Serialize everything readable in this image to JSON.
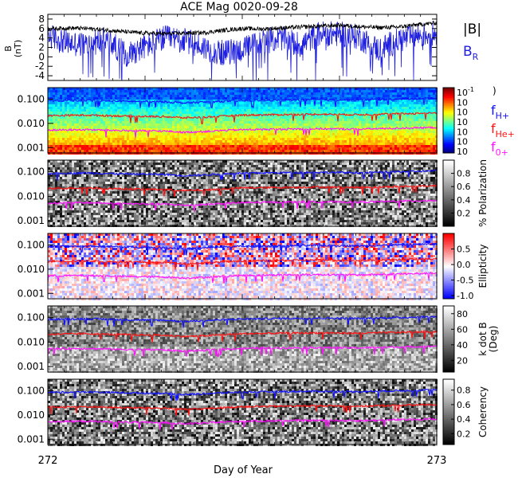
{
  "title": "ACE Mag 0020-09-28",
  "xlabel": "Day of Year",
  "x_ticks": [
    "272",
    "273"
  ],
  "colors": {
    "bmag": "#000000",
    "br": "#1f1fe0",
    "fh": "#1010ff",
    "fhe": "#ff1010",
    "fo": "#ff10ff"
  },
  "chart_data": [
    {
      "type": "line",
      "panel": "B field",
      "ylabel": "B\n(nT)",
      "ylim": [
        -5,
        9
      ],
      "y_ticks": [
        "8",
        "6",
        "4",
        "2",
        "0",
        "-2",
        "-4"
      ],
      "y_tick_values": [
        8,
        6,
        4,
        2,
        0,
        -2,
        -4
      ],
      "xlim": [
        272,
        273
      ],
      "legend": [
        {
          "label": "|B|",
          "color": "#000000"
        },
        {
          "label": "B",
          "sub": "R",
          "color": "#1f1fe0"
        }
      ],
      "series": [
        {
          "name": "|B|",
          "x": [
            272.0,
            272.05,
            272.1,
            272.15,
            272.2,
            272.25,
            272.3,
            272.35,
            272.4,
            272.45,
            272.5,
            272.55,
            272.6,
            272.65,
            272.7,
            272.75,
            272.8,
            272.85,
            272.9,
            272.95,
            273.0
          ],
          "values": [
            5.9,
            6.1,
            6.0,
            5.7,
            5.3,
            5.0,
            4.9,
            5.0,
            5.1,
            5.6,
            6.0,
            5.9,
            6.1,
            6.3,
            6.5,
            6.7,
            6.4,
            6.2,
            6.3,
            6.8,
            7.2
          ]
        },
        {
          "name": "B_R",
          "x": [
            272.0,
            272.05,
            272.1,
            272.15,
            272.2,
            272.25,
            272.3,
            272.35,
            272.4,
            272.45,
            272.5,
            272.55,
            272.6,
            272.65,
            272.7,
            272.75,
            272.8,
            272.85,
            272.9,
            272.95,
            273.0
          ],
          "values": [
            4.5,
            3.0,
            2.5,
            3.8,
            0.5,
            2.2,
            4.0,
            3.5,
            2.0,
            0.8,
            1.5,
            3.2,
            4.0,
            2.5,
            5.0,
            4.8,
            4.2,
            1.5,
            3.5,
            4.5,
            5.0
          ]
        }
      ]
    },
    {
      "type": "heatmap",
      "panel": "power",
      "ylim": [
        0.0006,
        0.3
      ],
      "y_ticks": [
        "0.100",
        "0.010",
        "0.001"
      ],
      "y_tick_values": [
        0.1,
        0.01,
        0.001
      ],
      "colorbar": {
        "labels": [
          "10",
          "10",
          "10",
          "10",
          "10",
          "10",
          "10"
        ],
        "exponents": [
          "-1",
          "",
          "",
          "",
          "",
          "",
          ""
        ],
        "note": ")"
      },
      "legend": [
        {
          "label": "f",
          "sub": "H+",
          "color": "#1010ff"
        },
        {
          "label": "f",
          "sub": "He+",
          "color": "#ff1010"
        },
        {
          "label": "f",
          "sub": "0+",
          "color": "#ff10ff"
        }
      ]
    },
    {
      "type": "heatmap",
      "panel": "polarization",
      "ylim": [
        0.0006,
        0.3
      ],
      "y_ticks": [
        "0.100",
        "0.010",
        "0.001"
      ],
      "y_tick_values": [
        0.1,
        0.01,
        0.001
      ],
      "colorbar": {
        "title": "% Polarization",
        "labels": [
          "0.8",
          "0.6",
          "0.4",
          "0.2"
        ],
        "values": [
          0.8,
          0.6,
          0.4,
          0.2
        ],
        "range": [
          0,
          1
        ]
      }
    },
    {
      "type": "heatmap",
      "panel": "ellipticity",
      "ylim": [
        0.0006,
        0.3
      ],
      "y_ticks": [
        "0.100",
        "0.010",
        "0.001"
      ],
      "y_tick_values": [
        0.1,
        0.01,
        0.001
      ],
      "colorbar": {
        "title": "Ellipticity",
        "labels": [
          "0.5",
          "0.0",
          "-0.5",
          "-1.0"
        ],
        "values": [
          0.5,
          0.0,
          -0.5,
          -1.0
        ],
        "range": [
          -1.1,
          1.0
        ]
      }
    },
    {
      "type": "heatmap",
      "panel": "k dot B",
      "ylim": [
        0.0006,
        0.3
      ],
      "y_ticks": [
        "0.100",
        "0.010",
        "0.001"
      ],
      "y_tick_values": [
        0.1,
        0.01,
        0.001
      ],
      "colorbar": {
        "title": "k dot B",
        "subtitle": "(Deg)",
        "labels": [
          "80",
          "60",
          "40",
          "20"
        ],
        "values": [
          80,
          60,
          40,
          20
        ],
        "range": [
          5,
          90
        ]
      }
    },
    {
      "type": "heatmap",
      "panel": "coherency",
      "ylim": [
        0.0006,
        0.3
      ],
      "y_ticks": [
        "0.100",
        "0.010",
        "0.001"
      ],
      "y_tick_values": [
        0.1,
        0.01,
        0.001
      ],
      "colorbar": {
        "title": "Coherency",
        "labels": [
          "0.8",
          "0.6",
          "0.4",
          "0.2"
        ],
        "values": [
          0.8,
          0.6,
          0.4,
          0.2
        ],
        "range": [
          0.05,
          0.95
        ]
      }
    }
  ],
  "gyro_lines": {
    "x": [
      272.0,
      272.1,
      272.2,
      272.3,
      272.35,
      272.4,
      272.45,
      272.5,
      272.6,
      272.7,
      272.8,
      272.9,
      273.0
    ],
    "f_H": [
      0.085,
      0.09,
      0.082,
      0.078,
      0.07,
      0.075,
      0.082,
      0.088,
      0.092,
      0.095,
      0.092,
      0.1,
      0.11
    ],
    "f_He": [
      0.021,
      0.022,
      0.02,
      0.019,
      0.017,
      0.018,
      0.02,
      0.022,
      0.023,
      0.024,
      0.023,
      0.025,
      0.027
    ],
    "f_O": [
      0.0053,
      0.0055,
      0.005,
      0.0048,
      0.0043,
      0.0046,
      0.0051,
      0.0055,
      0.0058,
      0.006,
      0.0058,
      0.0063,
      0.0068
    ]
  }
}
